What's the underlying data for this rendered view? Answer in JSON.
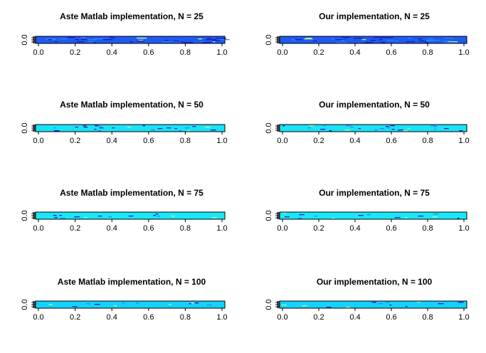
{
  "chart_data": [
    {
      "type": "heatmap",
      "title": "Aste Matlab implementation, N = 25",
      "N": 25,
      "xlim": [
        0,
        1
      ],
      "x_ticks": [
        "0.0",
        "0.2",
        "0.4",
        "0.6",
        "0.8",
        "1.0"
      ],
      "y_ticks": [
        "0.0"
      ],
      "base_color": "#1f5bf0"
    },
    {
      "type": "heatmap",
      "title": "Our implementation, N = 25",
      "N": 25,
      "xlim": [
        0,
        1
      ],
      "x_ticks": [
        "0.0",
        "0.2",
        "0.4",
        "0.6",
        "0.8",
        "1.0"
      ],
      "y_ticks": [
        "0.0"
      ],
      "base_color": "#1f5bf0"
    },
    {
      "type": "heatmap",
      "title": "Aste Matlab implementation, N = 50",
      "N": 50,
      "xlim": [
        0,
        1
      ],
      "x_ticks": [
        "0.0",
        "0.2",
        "0.4",
        "0.6",
        "0.8",
        "1.0"
      ],
      "y_ticks": [
        "0.0"
      ],
      "base_color": "#19e3f5"
    },
    {
      "type": "heatmap",
      "title": "Our implementation, N = 50",
      "N": 50,
      "xlim": [
        0,
        1
      ],
      "x_ticks": [
        "0.0",
        "0.2",
        "0.4",
        "0.6",
        "0.8",
        "1.0"
      ],
      "y_ticks": [
        "0.0"
      ],
      "base_color": "#19e3f5"
    },
    {
      "type": "heatmap",
      "title": "Aste Matlab implementation, N = 75",
      "N": 75,
      "xlim": [
        0,
        1
      ],
      "x_ticks": [
        "0.0",
        "0.2",
        "0.4",
        "0.6",
        "0.8",
        "1.0"
      ],
      "y_ticks": [
        "0.0"
      ],
      "base_color": "#18e8f8"
    },
    {
      "type": "heatmap",
      "title": "Our implementation, N = 75",
      "N": 75,
      "xlim": [
        0,
        1
      ],
      "x_ticks": [
        "0.0",
        "0.2",
        "0.4",
        "0.6",
        "0.8",
        "1.0"
      ],
      "y_ticks": [
        "0.0"
      ],
      "base_color": "#18e8f8"
    },
    {
      "type": "heatmap",
      "title": "Aste Matlab implementation, N = 100",
      "N": 100,
      "xlim": [
        0,
        1
      ],
      "x_ticks": [
        "0.0",
        "0.2",
        "0.4",
        "0.6",
        "0.8",
        "1.0"
      ],
      "y_ticks": [
        "0.0"
      ],
      "base_color": "#15d2fa"
    },
    {
      "type": "heatmap",
      "title": "Our implementation, N = 100",
      "N": 100,
      "xlim": [
        0,
        1
      ],
      "x_ticks": [
        "0.0",
        "0.2",
        "0.4",
        "0.6",
        "0.8",
        "1.0"
      ],
      "y_ticks": [
        "0.0"
      ],
      "base_color": "#15d2fa"
    }
  ],
  "colors": {
    "axis": "#000000",
    "label_column": "#555555",
    "outlier_dark": "#1a1acc",
    "outlier_light": "#b8f2a0",
    "outlier_mid": "#2a84ff"
  }
}
